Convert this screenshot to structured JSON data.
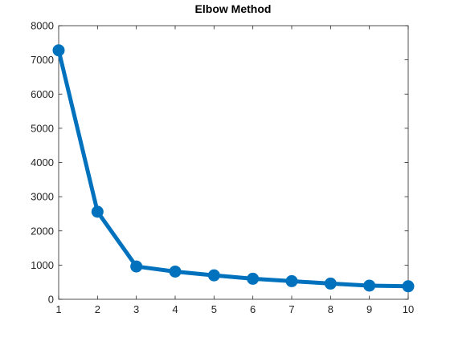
{
  "chart_data": {
    "type": "line",
    "title": "Elbow Method",
    "xlabel": "",
    "ylabel": "",
    "x": [
      1,
      2,
      3,
      4,
      5,
      6,
      7,
      8,
      9,
      10
    ],
    "series": [
      {
        "values": [
          7280,
          2560,
          960,
          810,
          700,
          600,
          530,
          460,
          400,
          380
        ],
        "color": "#0072BD"
      }
    ],
    "xlim": [
      1,
      10
    ],
    "ylim": [
      0,
      8000
    ],
    "xticks": [
      1,
      2,
      3,
      4,
      5,
      6,
      7,
      8,
      9,
      10
    ],
    "yticks": [
      0,
      1000,
      2000,
      3000,
      4000,
      5000,
      6000,
      7000,
      8000
    ],
    "grid": false,
    "legend": "none",
    "markers": "filled-circle"
  }
}
